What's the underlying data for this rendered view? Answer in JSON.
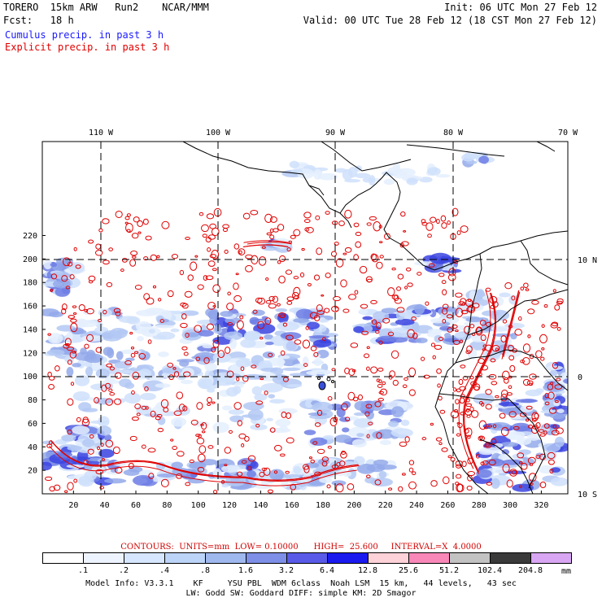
{
  "header": {
    "line1_left": "TORERO  15km ARW   Run2    NCAR/MMM",
    "line1_right": "Init: 06 UTC Mon 27 Feb 12",
    "line2_left": "Fcst:   18 h",
    "line2_right": "Valid: 00 UTC Tue 28 Feb 12 (18 CST Mon 27 Feb 12)",
    "fields": [
      {
        "label": "Cumulus precip. in past 3 h",
        "color": "#1a1aff"
      },
      {
        "label": "Explicit precip. in past 3 h",
        "color": "#e00000"
      }
    ]
  },
  "map": {
    "top_longitude_labels": [
      "110 W",
      "100 W",
      "90 W",
      "80 W",
      "70 W"
    ],
    "right_latitude_labels": [
      "10 N",
      "0",
      "10 S"
    ],
    "left_grid_labels": [
      "220",
      "200",
      "180",
      "160",
      "140",
      "120",
      "100",
      "80",
      "60",
      "40",
      "20"
    ],
    "bottom_grid_labels": [
      "20",
      "40",
      "60",
      "80",
      "100",
      "120",
      "140",
      "160",
      "180",
      "200",
      "220",
      "240",
      "260",
      "280",
      "300",
      "320"
    ]
  },
  "contours_line": "CONTOURS:  UNITS=mm  LOW= 0.10000      HIGH=  25.600     INTERVAL=X  4.0000",
  "colorbar": {
    "unit": "mm",
    "labels": [
      ".1",
      ".2",
      ".4",
      ".8",
      "1.6",
      "3.2",
      "6.4",
      "12.8",
      "25.6",
      "51.2",
      "102.4",
      "204.8"
    ],
    "colors": [
      "#ffffff",
      "#eef4ff",
      "#d6e6ff",
      "#bcd4f7",
      "#9fb8ee",
      "#7d8fe6",
      "#5a5ae8",
      "#1a1aee",
      "#fdd2d8",
      "#f888b8",
      "#c2c2c2",
      "#3a3a3a",
      "#d8a6f2"
    ]
  },
  "footer": {
    "line1": "Model Info: V3.3.1    KF     YSU PBL  WDM 6class  Noah LSM  15 km,   44 levels,   43 sec",
    "line2": "LW: Godd SW: Goddard DIFF: simple KM: 2D Smagor"
  }
}
